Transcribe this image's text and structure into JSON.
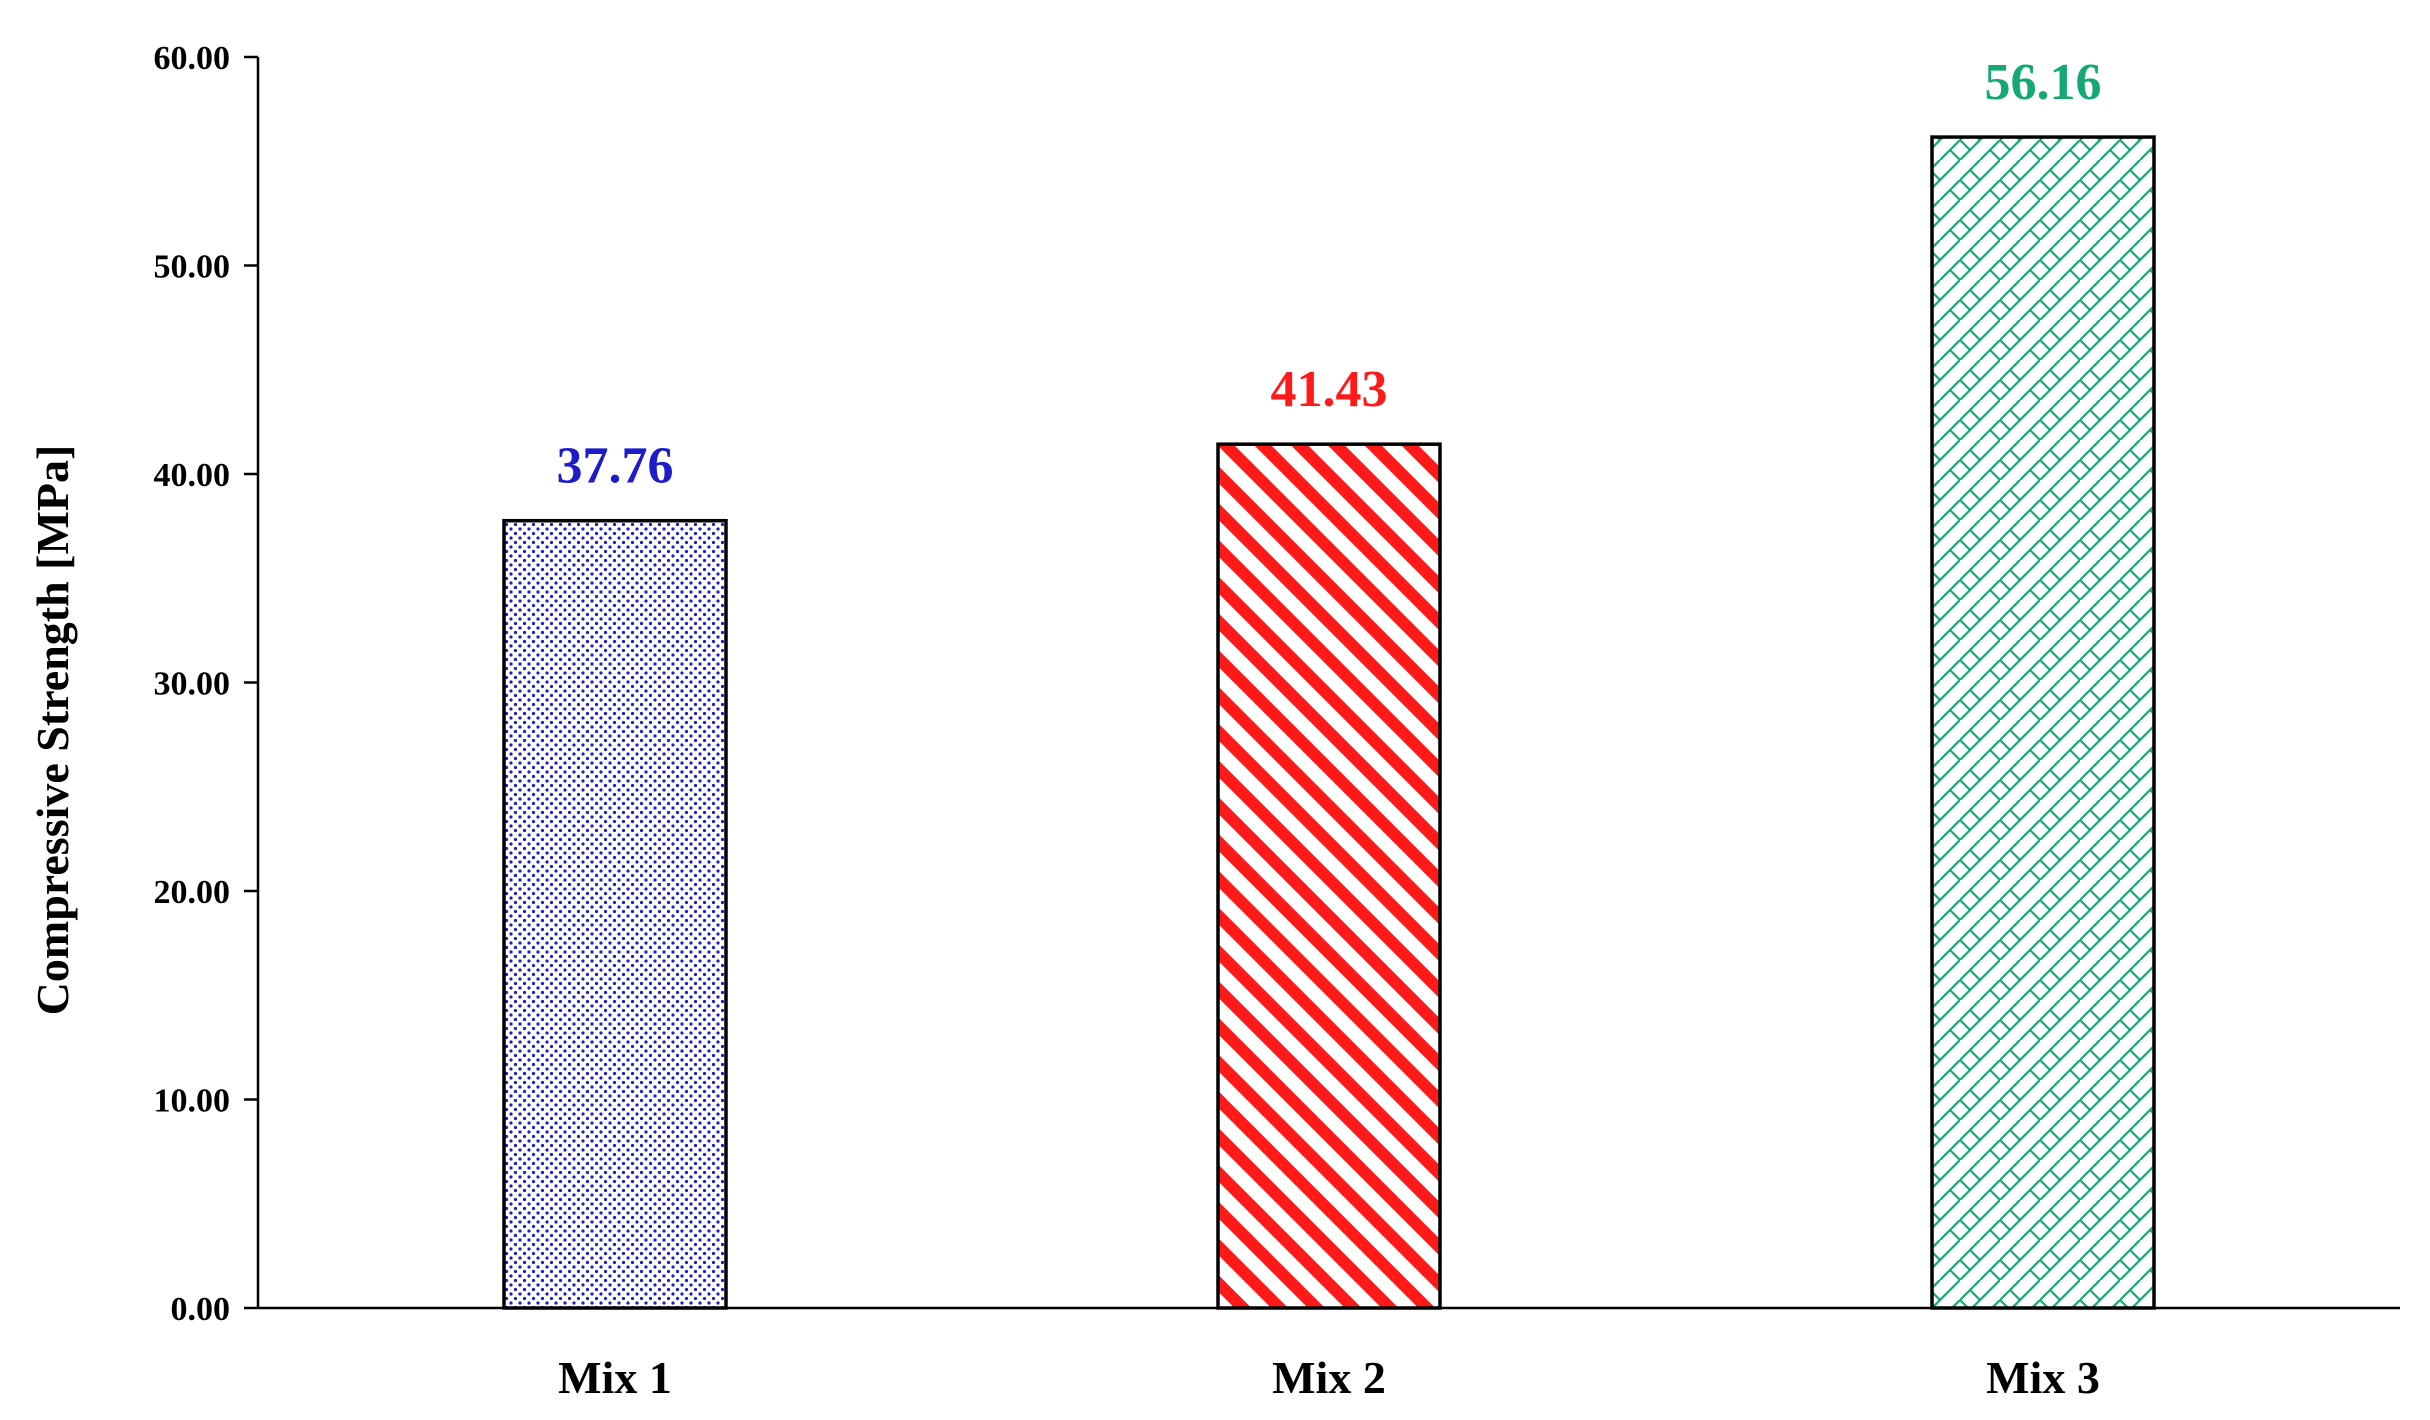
{
  "chart_data": {
    "type": "bar",
    "categories": [
      "Mix 1",
      "Mix 2",
      "Mix 3"
    ],
    "values": [
      37.76,
      41.43,
      56.16
    ],
    "value_labels": [
      "37.76",
      "41.43",
      "56.16"
    ],
    "title": "",
    "xlabel": "",
    "ylabel": "Compressive Strength [MPa]",
    "ylim": [
      0,
      60
    ],
    "yticks": [
      0,
      10,
      20,
      30,
      40,
      50,
      60
    ],
    "ytick_labels": [
      "0.00",
      "10.00",
      "20.00",
      "30.00",
      "40.00",
      "50.00",
      "60.00"
    ],
    "grid": false,
    "legend": "none",
    "bar_colors": [
      "#1c1cc8",
      "#ff1a1a",
      "#14a874"
    ],
    "bar_patterns": [
      "dots",
      "diagonal-stripes",
      "zigzag-crosshatch"
    ]
  }
}
